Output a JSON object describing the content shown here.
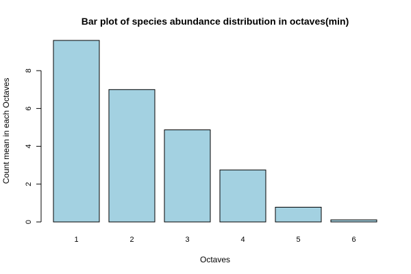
{
  "chart_data": {
    "type": "bar",
    "title": "Bar plot of species abundance distribution in octaves(min)",
    "xlabel": "Octaves",
    "ylabel": "Count mean in each Octaves",
    "categories": [
      "1",
      "2",
      "3",
      "4",
      "5",
      "6"
    ],
    "values": [
      9.6,
      7.0,
      4.87,
      2.75,
      0.78,
      0.11
    ],
    "ylim": [
      0,
      9.6
    ],
    "y_ticks": [
      0,
      2,
      4,
      6,
      8
    ],
    "y_tick_labels": [
      "0",
      "2",
      "4",
      "6",
      "8"
    ],
    "colors": {
      "bar_fill": "#a3d1e1",
      "bar_stroke": "#000000"
    },
    "grid": false,
    "legend": "none"
  }
}
